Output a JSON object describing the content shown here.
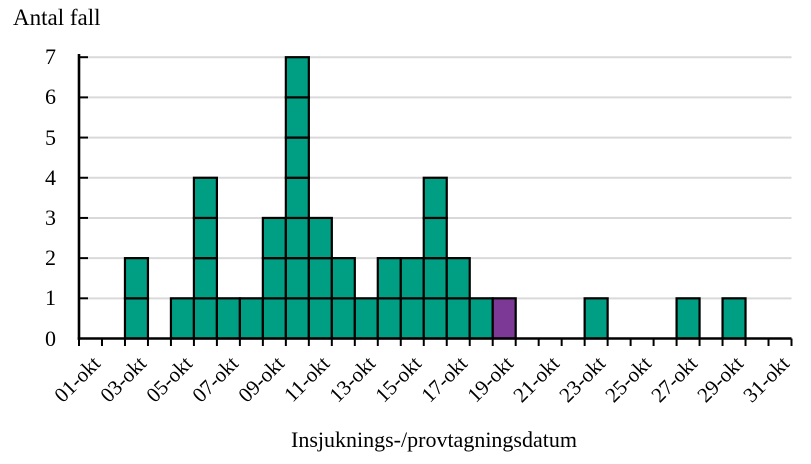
{
  "chart_data": {
    "type": "bar",
    "variant": "stacked-unit-epidemic-curve",
    "ylabel": "Antal fall",
    "xlabel": "Insjuknings-/provtagningsdatum",
    "categories": [
      "01-okt",
      "02-okt",
      "03-okt",
      "04-okt",
      "05-okt",
      "06-okt",
      "07-okt",
      "08-okt",
      "09-okt",
      "10-okt",
      "11-okt",
      "12-okt",
      "13-okt",
      "14-okt",
      "15-okt",
      "16-okt",
      "17-okt",
      "18-okt",
      "19-okt",
      "20-okt",
      "21-okt",
      "22-okt",
      "23-okt",
      "24-okt",
      "25-okt",
      "26-okt",
      "27-okt",
      "28-okt",
      "29-okt",
      "30-okt",
      "31-okt"
    ],
    "xtick_label_interval": 2,
    "series": [
      {
        "name": "cases-teal",
        "color": "#009E83",
        "values": [
          0,
          0,
          2,
          0,
          1,
          4,
          1,
          1,
          3,
          7,
          3,
          2,
          1,
          2,
          2,
          4,
          2,
          1,
          0,
          0,
          0,
          0,
          1,
          0,
          0,
          0,
          1,
          0,
          1,
          0,
          0
        ]
      },
      {
        "name": "case-highlight-purple",
        "color": "#7C3A96",
        "values": [
          0,
          0,
          0,
          0,
          0,
          0,
          0,
          0,
          0,
          0,
          0,
          0,
          0,
          0,
          0,
          0,
          0,
          0,
          1,
          0,
          0,
          0,
          0,
          0,
          0,
          0,
          0,
          0,
          0,
          0,
          0
        ]
      }
    ],
    "yticks": [
      0,
      1,
      2,
      3,
      4,
      5,
      6,
      7
    ],
    "ylim": [
      0,
      7
    ],
    "grid": true,
    "legend": false,
    "grid_color": "#D9D9D9",
    "axis_color": "#000000",
    "bar_border_color": "#000000"
  }
}
